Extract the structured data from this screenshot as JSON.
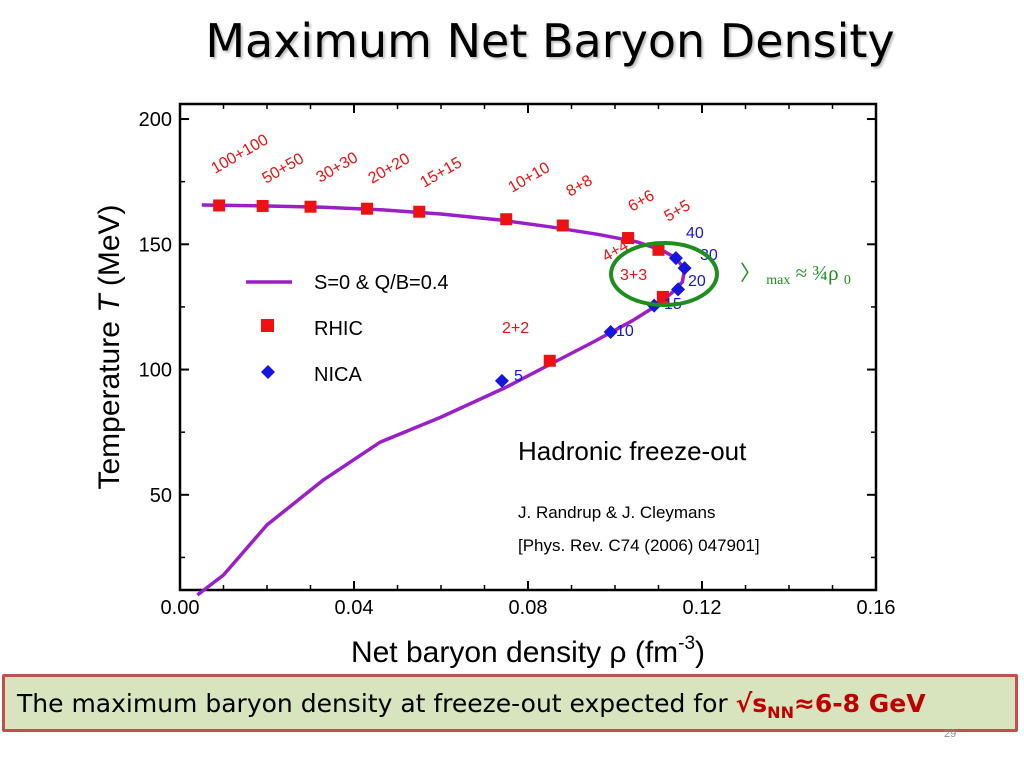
{
  "slide": {
    "title": "Maximum Net Baryon Density",
    "page_number": "29"
  },
  "conclusion": {
    "text": "The maximum baryon density at freeze-out expected for ",
    "highlight_prefix": "√s",
    "highlight_sub": "NN",
    "highlight_suffix": "≈6-8 GeV"
  },
  "colors": {
    "curve": "#9b1fc8",
    "rhic": "#ee1111",
    "nica": "#1515dd",
    "circle": "#1e8f1e",
    "note": "#1e8f1e",
    "box_fill": "#d7e4bd",
    "box_border": "#c0504d"
  },
  "chart_data": {
    "type": "scatter",
    "xlabel": "Net baryon density ρ (fm",
    "xlabel_exp": "-3",
    "xlabel_close": ")",
    "ylabel_prefix": "Temperature ",
    "ylabel_var": "T",
    "ylabel_suffix": " (MeV)",
    "xlim": [
      0.0,
      0.16
    ],
    "ylim": [
      12,
      206
    ],
    "xticks": [
      0.0,
      0.04,
      0.08,
      0.12,
      0.16
    ],
    "xtick_labels": [
      "0.00",
      "0.04",
      "0.08",
      "0.12",
      "0.16"
    ],
    "yticks": [
      50,
      100,
      150,
      200
    ],
    "ytick_labels": [
      "50",
      "100",
      "150",
      "200"
    ],
    "grid": false,
    "legend_position": "center-left",
    "legend": [
      {
        "label": "S=0 & Q/B=0.4",
        "kind": "line"
      },
      {
        "label": "RHIC",
        "kind": "square"
      },
      {
        "label": "NICA",
        "kind": "diamond"
      }
    ],
    "curve": {
      "name": "S=0 & Q/B=0.4",
      "x": [
        0.005,
        0.009,
        0.02,
        0.033,
        0.046,
        0.06,
        0.073,
        0.085,
        0.096,
        0.105,
        0.111,
        0.114,
        0.116,
        0.1155,
        0.113,
        0.11,
        0.104,
        0.095,
        0.085,
        0.075,
        0.06,
        0.046,
        0.033,
        0.02,
        0.01,
        0.004
      ],
      "y": [
        165.7,
        165.6,
        165.3,
        164.8,
        163.8,
        162.1,
        159.8,
        157.0,
        154.0,
        151.0,
        147.5,
        144.5,
        140.0,
        135.0,
        130.5,
        126.0,
        119.5,
        111.0,
        102.0,
        93.0,
        81.0,
        71.0,
        56.0,
        38.0,
        18.0,
        10.0
      ]
    },
    "rhic": {
      "name": "RHIC",
      "points": [
        {
          "x": 0.009,
          "y": 165.5,
          "label": "100+100"
        },
        {
          "x": 0.019,
          "y": 165.3,
          "label": "50+50"
        },
        {
          "x": 0.03,
          "y": 165.0,
          "label": "30+30"
        },
        {
          "x": 0.043,
          "y": 164.2,
          "label": "20+20"
        },
        {
          "x": 0.055,
          "y": 163.0,
          "label": "15+15"
        },
        {
          "x": 0.075,
          "y": 160.0,
          "label": "10+10"
        },
        {
          "x": 0.088,
          "y": 157.5,
          "label": "8+8"
        },
        {
          "x": 0.103,
          "y": 152.5,
          "label": "6+6"
        },
        {
          "x": 0.11,
          "y": 147.8,
          "label": "5+5"
        },
        {
          "x": 0.111,
          "y": 129.0,
          "label": "4+4"
        },
        {
          "x": 0.085,
          "y": 103.5,
          "label": "3+3"
        }
      ],
      "extra_labels": [
        "2+2"
      ]
    },
    "nica": {
      "name": "NICA",
      "points": [
        {
          "x": 0.114,
          "y": 144.5,
          "label": "40"
        },
        {
          "x": 0.116,
          "y": 140.5,
          "label": "30"
        },
        {
          "x": 0.1145,
          "y": 132.0,
          "label": "20"
        },
        {
          "x": 0.109,
          "y": 125.5,
          "label": "15"
        },
        {
          "x": 0.099,
          "y": 115.0,
          "label": "10"
        },
        {
          "x": 0.074,
          "y": 95.5,
          "label": "5"
        }
      ]
    },
    "annotations": {
      "hadronic": "Hadronic freeze-out",
      "ref_authors": "J. Randrup & J. Cleymans",
      "ref_journal": "[Phys. Rev. C74 (2006) 047901]",
      "note_open": "〉",
      "note_sub": "max",
      "note_mid": "≈ ¾ρ",
      "note_sub0": "0"
    }
  }
}
